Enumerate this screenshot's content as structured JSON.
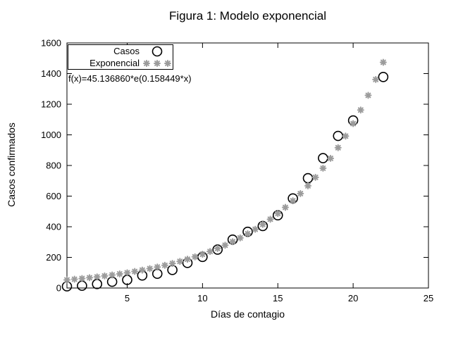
{
  "chart_data": {
    "type": "scatter",
    "title": "Figura 1: Modelo exponencial",
    "xlabel": "Días de contagio",
    "ylabel": "Casos confirmados",
    "xlim": [
      1,
      25
    ],
    "ylim": [
      0,
      1600
    ],
    "xticks": [
      5,
      10,
      15,
      20,
      25
    ],
    "yticks": [
      0,
      200,
      400,
      600,
      800,
      1000,
      1200,
      1400,
      1600
    ],
    "grid": false,
    "legend_position": "top-left-inside",
    "annotation": "f(x)=45.136860*e(0.158449*x)",
    "series": [
      {
        "name": "Casos",
        "style": "open-circle",
        "color": "#000000",
        "x": [
          1,
          2,
          3,
          4,
          5,
          6,
          7,
          8,
          9,
          10,
          11,
          12,
          13,
          14,
          15,
          16,
          17,
          18,
          19,
          20,
          22
        ],
        "y": [
          11,
          15,
          26,
          41,
          53,
          82,
          93,
          118,
          164,
          203,
          251,
          316,
          367,
          405,
          475,
          585,
          717,
          848,
          993,
          1094,
          1378
        ]
      },
      {
        "name": "Exponencial",
        "style": "asterisk",
        "color": "#9c9c9c",
        "model": "a*exp(b*x)",
        "a": 45.13686,
        "b": 0.158449,
        "x_start": 1,
        "x_end": 22,
        "x_step": 0.5
      }
    ]
  }
}
